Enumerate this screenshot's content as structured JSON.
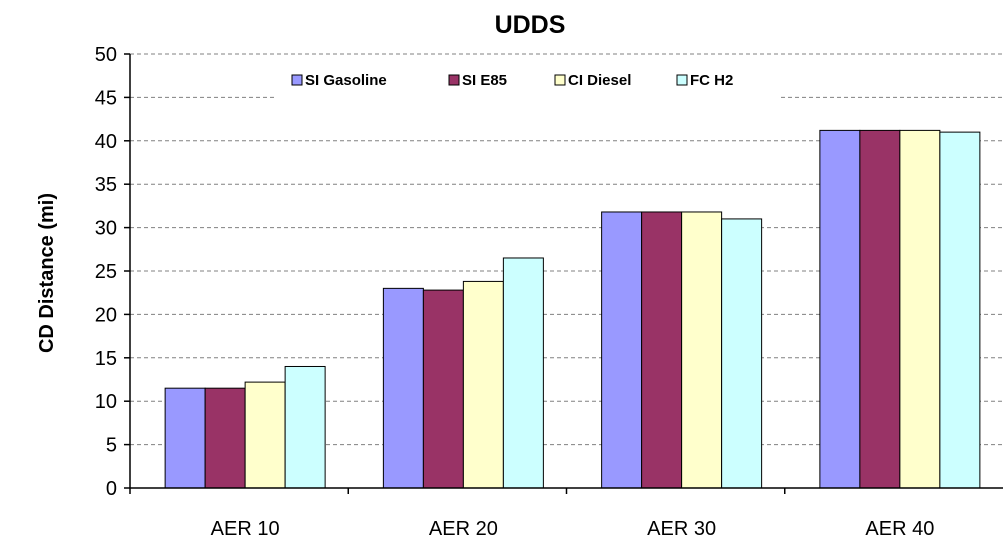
{
  "chart_data": {
    "type": "bar",
    "title": "UDDS",
    "xlabel": "",
    "ylabel": "CD Distance (mi)",
    "ylim": [
      0,
      50
    ],
    "yticks": [
      0,
      5,
      10,
      15,
      20,
      25,
      30,
      35,
      40,
      45,
      50
    ],
    "grid": true,
    "legend_position": "top-center",
    "categories": [
      "AER 10",
      "AER 20",
      "AER 30",
      "AER 40"
    ],
    "series": [
      {
        "name": "SI Gasoline",
        "color": "#9999FF",
        "values": [
          11.5,
          23.0,
          31.8,
          41.2
        ]
      },
      {
        "name": "SI E85",
        "color": "#993366",
        "values": [
          11.5,
          22.8,
          31.8,
          41.2
        ]
      },
      {
        "name": "CI Diesel",
        "color": "#FFFFCC",
        "values": [
          12.2,
          23.8,
          31.8,
          41.2
        ]
      },
      {
        "name": "FC H2",
        "color": "#CCFFFF",
        "values": [
          14.0,
          26.5,
          31.0,
          41.0
        ]
      }
    ]
  }
}
